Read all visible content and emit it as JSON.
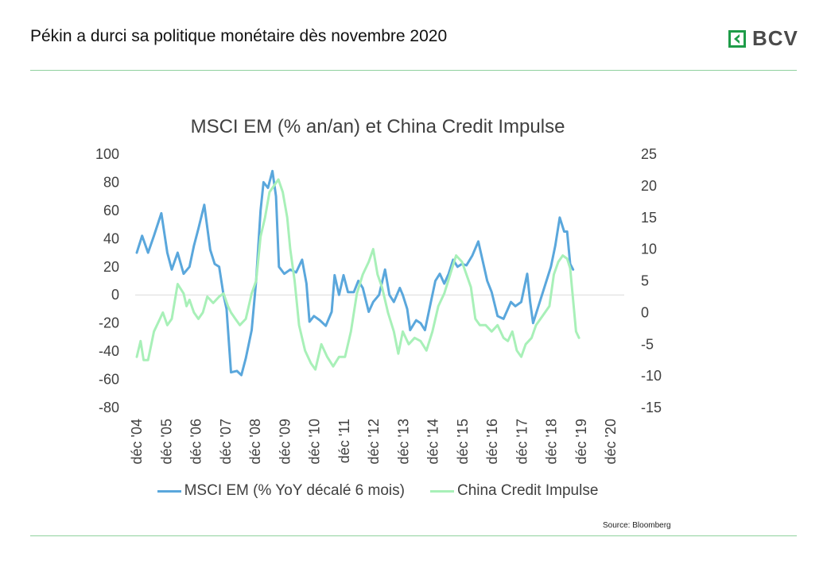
{
  "header": {
    "title": "Pékin a durci sa politique monétaire dès novembre 2020",
    "logo_text": "BCV"
  },
  "colors": {
    "accent": "#8fd19e",
    "logo_green": "#1e9c48",
    "msci": "#5aa7dc",
    "credit": "#a8f0b8"
  },
  "footer": {
    "source": "Source: Bloomberg"
  },
  "chart_data": {
    "type": "line",
    "title": "MSCI EM (% an/an) et China Credit Impulse",
    "x_categories": [
      "déc '04",
      "déc '05",
      "déc '06",
      "déc '07",
      "déc '08",
      "déc '09",
      "déc '10",
      "déc '11",
      "déc '12",
      "déc '13",
      "déc '14",
      "déc '15",
      "déc '16",
      "déc '17",
      "déc '18",
      "déc '19",
      "déc '20"
    ],
    "y_left": {
      "min": -80,
      "max": 100,
      "ticks": [
        100,
        80,
        60,
        40,
        20,
        0,
        -20,
        -40,
        -60,
        -80
      ]
    },
    "y_right": {
      "min": -15,
      "max": 25,
      "ticks": [
        25,
        20,
        15,
        10,
        5,
        0,
        -5,
        -10,
        -15
      ]
    },
    "legend_position": "bottom",
    "series": [
      {
        "name": "MSCI EM (% YoY décalé 6 mois)",
        "axis": "left",
        "points": [
          [
            2004.92,
            30
          ],
          [
            2005.1,
            42
          ],
          [
            2005.3,
            30
          ],
          [
            2005.5,
            42
          ],
          [
            2005.75,
            58
          ],
          [
            2005.95,
            30
          ],
          [
            2006.1,
            18
          ],
          [
            2006.3,
            30
          ],
          [
            2006.5,
            15
          ],
          [
            2006.7,
            20
          ],
          [
            2006.85,
            35
          ],
          [
            2007.0,
            47
          ],
          [
            2007.2,
            64
          ],
          [
            2007.4,
            32
          ],
          [
            2007.55,
            22
          ],
          [
            2007.7,
            20
          ],
          [
            2007.85,
            0
          ],
          [
            2007.95,
            -10
          ],
          [
            2008.1,
            -55
          ],
          [
            2008.3,
            -54
          ],
          [
            2008.45,
            -57
          ],
          [
            2008.6,
            -45
          ],
          [
            2008.8,
            -25
          ],
          [
            2008.95,
            10
          ],
          [
            2009.1,
            60
          ],
          [
            2009.2,
            80
          ],
          [
            2009.35,
            76
          ],
          [
            2009.5,
            88
          ],
          [
            2009.62,
            70
          ],
          [
            2009.72,
            20
          ],
          [
            2009.9,
            15
          ],
          [
            2010.1,
            18
          ],
          [
            2010.3,
            16
          ],
          [
            2010.5,
            25
          ],
          [
            2010.65,
            8
          ],
          [
            2010.75,
            -19
          ],
          [
            2010.9,
            -15
          ],
          [
            2011.1,
            -18
          ],
          [
            2011.3,
            -22
          ],
          [
            2011.5,
            -12
          ],
          [
            2011.6,
            14
          ],
          [
            2011.75,
            0
          ],
          [
            2011.9,
            14
          ],
          [
            2012.05,
            2
          ],
          [
            2012.25,
            2
          ],
          [
            2012.4,
            10
          ],
          [
            2012.55,
            5
          ],
          [
            2012.75,
            -12
          ],
          [
            2012.9,
            -5
          ],
          [
            2013.1,
            0
          ],
          [
            2013.3,
            18
          ],
          [
            2013.45,
            0
          ],
          [
            2013.6,
            -5
          ],
          [
            2013.8,
            5
          ],
          [
            2013.9,
            0
          ],
          [
            2014.05,
            -10
          ],
          [
            2014.15,
            -25
          ],
          [
            2014.35,
            -18
          ],
          [
            2014.5,
            -20
          ],
          [
            2014.65,
            -25
          ],
          [
            2014.8,
            -10
          ],
          [
            2015.0,
            10
          ],
          [
            2015.15,
            15
          ],
          [
            2015.3,
            8
          ],
          [
            2015.45,
            15
          ],
          [
            2015.6,
            25
          ],
          [
            2015.75,
            20
          ],
          [
            2015.9,
            22
          ],
          [
            2016.05,
            21
          ],
          [
            2016.25,
            28
          ],
          [
            2016.45,
            38
          ],
          [
            2016.6,
            24
          ],
          [
            2016.75,
            10
          ],
          [
            2016.9,
            2
          ],
          [
            2017.1,
            -15
          ],
          [
            2017.3,
            -17
          ],
          [
            2017.45,
            -10
          ],
          [
            2017.55,
            -5
          ],
          [
            2017.7,
            -8
          ],
          [
            2017.9,
            -5
          ],
          [
            2018.1,
            15
          ],
          [
            2018.2,
            -5
          ],
          [
            2018.3,
            -20
          ],
          [
            2018.45,
            -10
          ],
          [
            2018.6,
            0
          ],
          [
            2018.75,
            10
          ],
          [
            2018.9,
            20
          ],
          [
            2019.05,
            35
          ],
          [
            2019.2,
            55
          ],
          [
            2019.35,
            45
          ],
          [
            2019.45,
            45
          ],
          [
            2019.55,
            22
          ],
          [
            2019.65,
            18
          ]
        ]
      },
      {
        "name": "China Credit Impulse",
        "axis": "right",
        "points": [
          [
            2004.92,
            -7
          ],
          [
            2005.05,
            -4.5
          ],
          [
            2005.15,
            -7.5
          ],
          [
            2005.3,
            -7.5
          ],
          [
            2005.5,
            -3
          ],
          [
            2005.7,
            -1
          ],
          [
            2005.8,
            0
          ],
          [
            2005.95,
            -2
          ],
          [
            2006.1,
            -1
          ],
          [
            2006.3,
            4.5
          ],
          [
            2006.5,
            3
          ],
          [
            2006.6,
            1
          ],
          [
            2006.7,
            2
          ],
          [
            2006.85,
            0
          ],
          [
            2007.0,
            -1
          ],
          [
            2007.15,
            0
          ],
          [
            2007.3,
            2.5
          ],
          [
            2007.5,
            1.5
          ],
          [
            2007.7,
            2.5
          ],
          [
            2007.85,
            3
          ],
          [
            2008.0,
            1
          ],
          [
            2008.1,
            0
          ],
          [
            2008.25,
            -1
          ],
          [
            2008.4,
            -2
          ],
          [
            2008.6,
            -1
          ],
          [
            2008.8,
            3
          ],
          [
            2008.95,
            5
          ],
          [
            2009.1,
            12
          ],
          [
            2009.25,
            15
          ],
          [
            2009.4,
            19
          ],
          [
            2009.55,
            20
          ],
          [
            2009.7,
            21
          ],
          [
            2009.85,
            19
          ],
          [
            2010.0,
            15
          ],
          [
            2010.1,
            10
          ],
          [
            2010.25,
            5
          ],
          [
            2010.4,
            -2
          ],
          [
            2010.6,
            -6
          ],
          [
            2010.8,
            -8
          ],
          [
            2010.95,
            -9
          ],
          [
            2011.15,
            -5
          ],
          [
            2011.35,
            -7
          ],
          [
            2011.55,
            -8.5
          ],
          [
            2011.75,
            -7
          ],
          [
            2011.95,
            -7
          ],
          [
            2012.15,
            -3
          ],
          [
            2012.35,
            3
          ],
          [
            2012.55,
            6
          ],
          [
            2012.75,
            8
          ],
          [
            2012.9,
            10
          ],
          [
            2013.05,
            6
          ],
          [
            2013.2,
            4
          ],
          [
            2013.4,
            0
          ],
          [
            2013.6,
            -3
          ],
          [
            2013.75,
            -6.5
          ],
          [
            2013.9,
            -3
          ],
          [
            2014.1,
            -5
          ],
          [
            2014.3,
            -4
          ],
          [
            2014.5,
            -4.5
          ],
          [
            2014.7,
            -6
          ],
          [
            2014.9,
            -3
          ],
          [
            2015.1,
            1
          ],
          [
            2015.3,
            3
          ],
          [
            2015.5,
            6
          ],
          [
            2015.7,
            9
          ],
          [
            2015.9,
            8
          ],
          [
            2016.05,
            6
          ],
          [
            2016.2,
            4
          ],
          [
            2016.35,
            -1
          ],
          [
            2016.5,
            -2
          ],
          [
            2016.7,
            -2
          ],
          [
            2016.9,
            -3
          ],
          [
            2017.1,
            -2
          ],
          [
            2017.3,
            -4
          ],
          [
            2017.45,
            -4.5
          ],
          [
            2017.6,
            -3
          ],
          [
            2017.75,
            -6
          ],
          [
            2017.9,
            -7
          ],
          [
            2018.05,
            -5
          ],
          [
            2018.25,
            -4
          ],
          [
            2018.4,
            -2
          ],
          [
            2018.55,
            -1
          ],
          [
            2018.7,
            0
          ],
          [
            2018.85,
            1
          ],
          [
            2019.0,
            6
          ],
          [
            2019.15,
            8
          ],
          [
            2019.3,
            9
          ],
          [
            2019.45,
            8.5
          ],
          [
            2019.55,
            7
          ],
          [
            2019.65,
            2
          ],
          [
            2019.75,
            -3
          ],
          [
            2019.85,
            -4
          ]
        ]
      }
    ]
  }
}
